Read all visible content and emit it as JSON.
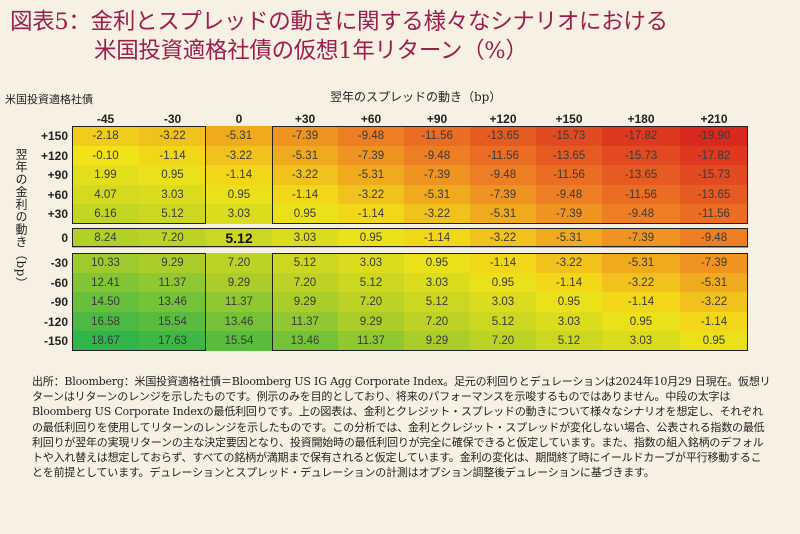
{
  "title": {
    "line1": "図表5：金利とスプレッドの動きに関する様々なシナリオにおける",
    "line2": "米国投資適格社債の仮想1年リターン（%）"
  },
  "row_axis_title": "米国投資適格社債",
  "col_axis_title": "翌年のスプレッドの動き（bp）",
  "y_axis_label": "翌年の金利の動き（bp）",
  "note": "出所：Bloomberg：米国投資適格社債＝Bloomberg US IG Agg Corporate Index。足元の利回りとデュレーションは2024年10月29 日現在。仮想リターンはリターンのレンジを示したものです。例示のみを目的としており、将来のパフォーマンスを示唆するものではありません。中段の太字はBloomberg US Corporate Indexの最低利回りです。上の図表は、金利とクレジット・スプレッドの動きについて様々なシナリオを想定し、それぞれの最低利回りを使用してリターンのレンジを示したものです。この分析では、金利とクレジット・スプレッドが変化しない場合、公表される指数の最低利回りが翌年の実現リターンの主な決定要因となり、投資開始時の最低利回りが完全に確保できると仮定しています。また、指数の組入銘柄のデフォルトや入れ替えは想定しておらず、すべての銘柄が満期まで保有されると仮定しています。金利の変化は、期間終了時にイールドカーブが平行移動することを前提としています。デュレーションとスプレッド・デュレーションの計測はオプション調整後デュレーションに基づきます。",
  "chart_data": {
    "type": "heatmap",
    "title": "図表5：金利とスプレッドの動きに関する様々なシナリオにおける米国投資適格社債の仮想1年リターン（%）",
    "xlabel": "翌年のスプレッドの動き（bp）",
    "ylabel": "翌年の金利の動き（bp）",
    "columns": [
      "-45",
      "-30",
      "0",
      "+30",
      "+60",
      "+90",
      "+120",
      "+150",
      "+180",
      "+210"
    ],
    "rows": [
      "+150",
      "+120",
      "+90",
      "+60",
      "+30",
      "0",
      "-30",
      "-60",
      "-90",
      "-120",
      "-150"
    ],
    "values": [
      [
        "-2.18",
        "-3.22",
        "-5.31",
        "-7.39",
        "-9.48",
        "-11.56",
        "-13.65",
        "-15.73",
        "-17.82",
        "-19.90"
      ],
      [
        "-0.10",
        "-1.14",
        "-3.22",
        "-5.31",
        "-7.39",
        "-9.48",
        "-11.56",
        "-13.65",
        "-15.73",
        "-17.82"
      ],
      [
        "1.99",
        "0.95",
        "-1.14",
        "-3.22",
        "-5.31",
        "-7.39",
        "-9.48",
        "-11.56",
        "-13.65",
        "-15.73"
      ],
      [
        "4.07",
        "3.03",
        "0.95",
        "-1.14",
        "-3.22",
        "-5.31",
        "-7.39",
        "-9.48",
        "-11.56",
        "-13.65"
      ],
      [
        "6.16",
        "5.12",
        "3.03",
        "0.95",
        "-1.14",
        "-3.22",
        "-5.31",
        "-7.39",
        "-9.48",
        "-11.56"
      ],
      [
        "8.24",
        "7.20",
        "5.12",
        "3.03",
        "0.95",
        "-1.14",
        "-3.22",
        "-5.31",
        "-7.39",
        "-9.48"
      ],
      [
        "10.33",
        "9.29",
        "7.20",
        "5.12",
        "3.03",
        "0.95",
        "-1.14",
        "-3.22",
        "-5.31",
        "-7.39"
      ],
      [
        "12.41",
        "11.37",
        "9.29",
        "7.20",
        "5.12",
        "3.03",
        "0.95",
        "-1.14",
        "-3.22",
        "-5.31"
      ],
      [
        "14.50",
        "13.46",
        "11.37",
        "9.29",
        "7.20",
        "5.12",
        "3.03",
        "0.95",
        "-1.14",
        "-3.22"
      ],
      [
        "16.58",
        "15.54",
        "13.46",
        "11.37",
        "9.29",
        "7.20",
        "5.12",
        "3.03",
        "0.95",
        "-1.14"
      ],
      [
        "18.67",
        "17.63",
        "15.54",
        "13.46",
        "11.37",
        "9.29",
        "7.20",
        "5.12",
        "3.03",
        "0.95"
      ]
    ],
    "highlight": {
      "row": "0",
      "column": "0",
      "value": "5.12",
      "style": "bold"
    },
    "color_scale": {
      "low": "#d9281e",
      "mid": "#f2e318",
      "high": "#2db34a"
    }
  }
}
